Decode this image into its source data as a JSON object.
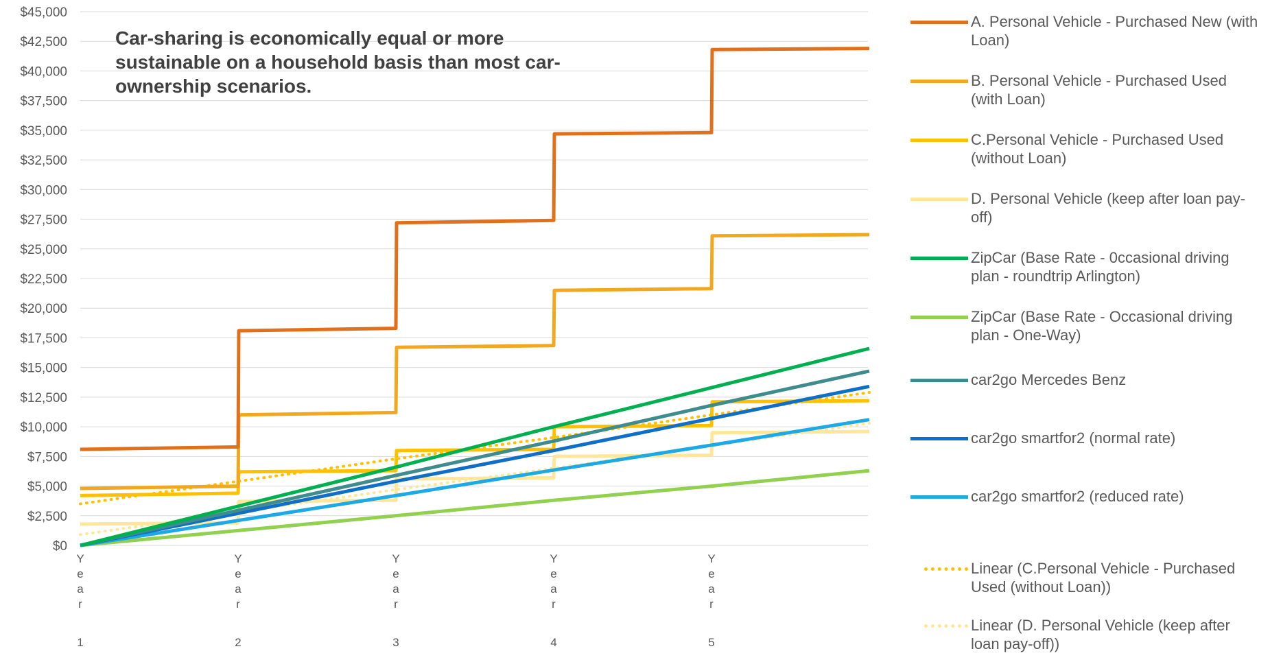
{
  "annotation": "Car-sharing is economically equal or more sustainable on a household basis than most car-ownership scenarios.",
  "chart_data": {
    "type": "line",
    "title": "",
    "xlabel": "",
    "ylabel": "",
    "categories": [
      "Year 1",
      "Year 2",
      "Year 3",
      "Year 4",
      "Year 5",
      ""
    ],
    "x": [
      0,
      1,
      2,
      3,
      4,
      5
    ],
    "ylim": [
      0,
      45000
    ],
    "yticks": [
      0,
      2500,
      5000,
      7500,
      10000,
      12500,
      15000,
      17500,
      20000,
      22500,
      25000,
      27500,
      30000,
      32500,
      35000,
      37500,
      40000,
      42500,
      45000
    ],
    "ytick_labels": [
      "$0",
      "$2,500",
      "$5,000",
      "$7,500",
      "$10,000",
      "$12,500",
      "$15,000",
      "$17,500",
      "$20,000",
      "$22,500",
      "$25,000",
      "$27,500",
      "$30,000",
      "$32,500",
      "$35,000",
      "$37,500",
      "$40,000",
      "$42,500",
      "$45,000"
    ],
    "xtick_labels": [
      "Year 1",
      "Year 2",
      "Year 3",
      "Year 4",
      "Year 5"
    ],
    "grid": true,
    "legend_position": "right",
    "series": [
      {
        "name": "A. Personal Vehicle - Purchased New (with Loan)",
        "color": "#E0701C",
        "style": "step",
        "values": [
          [
            8100,
            8300
          ],
          [
            18100,
            18300
          ],
          [
            27200,
            27400
          ],
          [
            34700,
            34800
          ],
          [
            41800,
            41900
          ]
        ]
      },
      {
        "name": "B. Personal Vehicle - Purchased Used (with Loan)",
        "color": "#F2A81E",
        "style": "step",
        "values": [
          [
            4800,
            5000
          ],
          [
            11000,
            11200
          ],
          [
            16700,
            16850
          ],
          [
            21500,
            21650
          ],
          [
            26100,
            26200
          ]
        ]
      },
      {
        "name": "C.Personal Vehicle - Purchased Used (without Loan)",
        "color": "#FFC000",
        "style": "step",
        "values": [
          [
            4200,
            4400
          ],
          [
            6200,
            6300
          ],
          [
            8000,
            8100
          ],
          [
            10000,
            10100
          ],
          [
            12100,
            12200
          ]
        ]
      },
      {
        "name": "D. Personal Vehicle (keep after loan pay-off)",
        "color": "#FFE699",
        "style": "step",
        "values": [
          [
            1800,
            1900
          ],
          [
            3700,
            3800
          ],
          [
            5600,
            5700
          ],
          [
            7500,
            7600
          ],
          [
            9500,
            9600
          ]
        ]
      },
      {
        "name": "ZipCar (Base Rate - 0ccasional driving plan - roundtrip Arlington)",
        "color": "#00B050",
        "style": "line",
        "values": [
          0,
          3300,
          6600,
          10000,
          13300,
          16600
        ]
      },
      {
        "name": "ZipCar (Base Rate - Occasional driving plan - One-Way)",
        "color": "#92D050",
        "style": "line",
        "values": [
          0,
          1250,
          2500,
          3800,
          5000,
          6300
        ]
      },
      {
        "name": "car2go Mercedes Benz",
        "color": "#3F8C8F",
        "style": "line",
        "values": [
          0,
          2950,
          5900,
          8800,
          11800,
          14700
        ]
      },
      {
        "name": "car2go smartfor2 (normal  rate)",
        "color": "#0F6FC6",
        "style": "line",
        "values": [
          0,
          2700,
          5400,
          8000,
          10700,
          13400
        ]
      },
      {
        "name": "car2go smartfor2 (reduced rate)",
        "color": "#1CA9E6",
        "style": "line",
        "values": [
          0,
          2100,
          4200,
          6350,
          8450,
          10600
        ]
      },
      {
        "name": "Linear (C.Personal Vehicle - Purchased Used (without Loan))",
        "color": "#FFC000",
        "style": "dotted",
        "values": [
          3500,
          5400,
          7300,
          9100,
          11000,
          12900
        ]
      },
      {
        "name": "Linear (D. Personal Vehicle (keep after loan pay-off))",
        "color": "#FFE699",
        "style": "dotted",
        "values": [
          900,
          2800,
          4700,
          6500,
          8400,
          10300
        ]
      }
    ]
  }
}
